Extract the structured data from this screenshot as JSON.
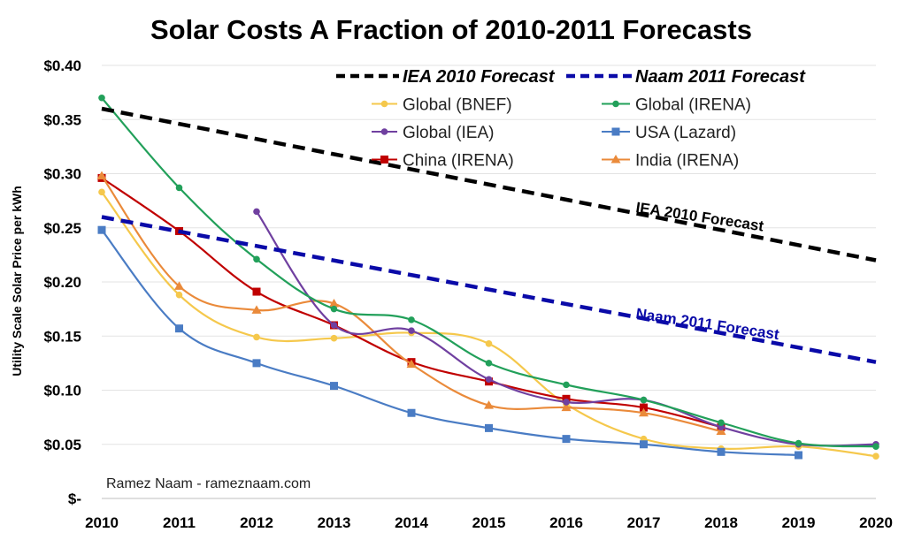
{
  "chart_data": {
    "type": "line",
    "title": "Solar Costs A Fraction of 2010-2011 Forecasts",
    "xlabel": "",
    "ylabel": "Utility Scale Solar Price per kWh",
    "x": [
      2010,
      2011,
      2012,
      2013,
      2014,
      2015,
      2016,
      2017,
      2018,
      2019,
      2020
    ],
    "x_tick_labels": [
      "2010",
      "2011",
      "2012",
      "2013",
      "2014",
      "2015",
      "2016",
      "2017",
      "2018",
      "2019",
      "2020"
    ],
    "ylim": [
      0,
      0.4
    ],
    "y_tick_labels": [
      "$-",
      "$0.05",
      "$0.10",
      "$0.15",
      "$0.20",
      "$0.25",
      "$0.30",
      "$0.35",
      "$0.40"
    ],
    "grid": true,
    "legend_position": "top-right",
    "annotation": "Ramez Naam - rameznaam.com",
    "series": [
      {
        "name": "IEA 2010 Forecast",
        "color": "#000000",
        "style": "dashed",
        "label": "IEA 2010 Forecast",
        "values": [
          0.36,
          0.346,
          0.332,
          0.318,
          0.304,
          0.29,
          0.276,
          0.262,
          0.248,
          0.234,
          0.22
        ]
      },
      {
        "name": "Naam 2011 Forecast",
        "color": "#0a0aa8",
        "style": "dashed",
        "label": "Naam 2011 Forecast",
        "values": [
          0.26,
          0.2466,
          0.2332,
          0.2198,
          0.2064,
          0.193,
          0.1796,
          0.1662,
          0.1528,
          0.1394,
          0.126
        ]
      },
      {
        "name": "Global (BNEF)",
        "color": "#f5c84c",
        "marker": "circle",
        "values": [
          0.283,
          0.188,
          0.149,
          0.148,
          0.153,
          0.143,
          0.087,
          0.055,
          0.046,
          0.048,
          0.039
        ]
      },
      {
        "name": "Global (IRENA)",
        "color": "#22a05a",
        "marker": "circle",
        "values": [
          0.37,
          0.287,
          0.221,
          0.175,
          0.165,
          0.125,
          0.105,
          0.091,
          0.07,
          0.051,
          0.048
        ]
      },
      {
        "name": "Global (IEA)",
        "color": "#7040a0",
        "marker": "circle",
        "values": [
          null,
          null,
          0.265,
          0.16,
          0.155,
          0.11,
          0.089,
          0.091,
          0.066,
          0.05,
          0.05
        ]
      },
      {
        "name": "USA (Lazard)",
        "color": "#4a7cc4",
        "marker": "square",
        "values": [
          0.248,
          0.157,
          0.125,
          0.104,
          0.079,
          0.065,
          0.055,
          0.05,
          0.043,
          0.04,
          null
        ]
      },
      {
        "name": "China (IRENA)",
        "color": "#c00000",
        "marker": "square",
        "values": [
          0.296,
          0.247,
          0.191,
          0.16,
          0.126,
          0.108,
          0.092,
          0.084,
          0.066,
          null,
          null
        ]
      },
      {
        "name": "India (IRENA)",
        "color": "#ea8a3a",
        "marker": "triangle",
        "values": [
          0.298,
          0.196,
          0.174,
          0.18,
          0.124,
          0.086,
          0.084,
          0.079,
          0.062,
          null,
          null
        ]
      }
    ]
  }
}
